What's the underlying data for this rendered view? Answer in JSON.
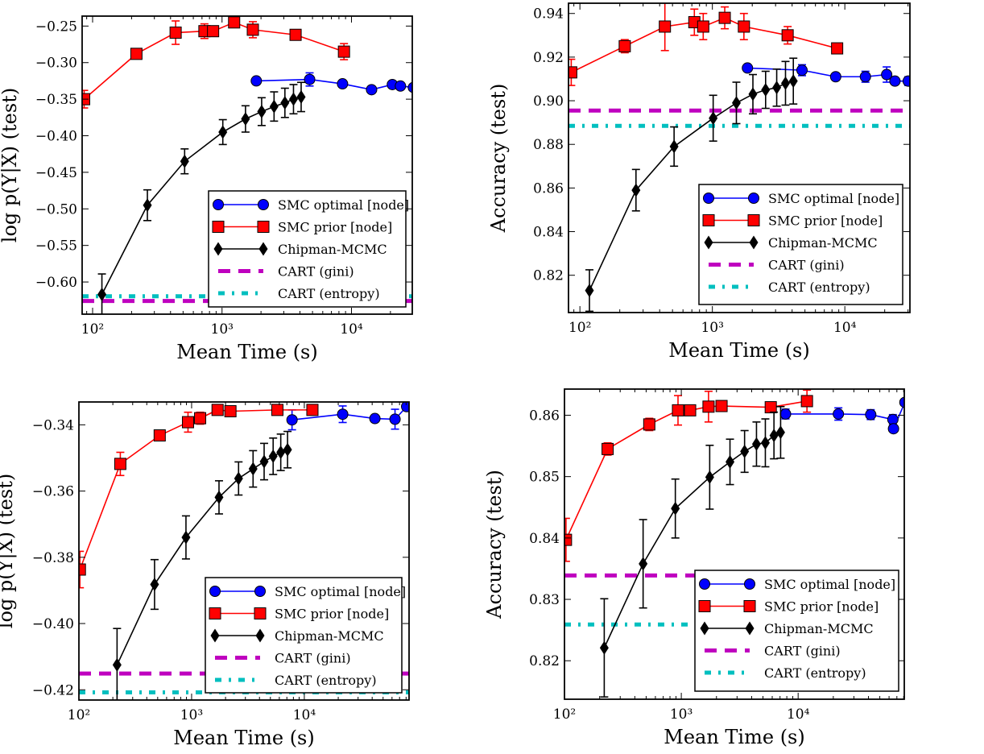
{
  "colors": {
    "smc_optimal": "#0000ff",
    "smc_prior": "#ff0000",
    "chipman": "#000000",
    "cart_gini": "#bf00bf",
    "cart_entropy": "#00bfbf"
  },
  "legend_labels": [
    "SMC optimal [node]",
    "SMC prior [node]",
    "Chipman-MCMC",
    "CART (gini)",
    "CART (entropy)"
  ],
  "chart_data": [
    {
      "type": "line",
      "xscale": "log",
      "xlabel": "Mean Time (s)",
      "ylabel": "log p(Y|X) (test)",
      "xlim": [
        83,
        29500
      ],
      "ylim": [
        -0.644,
        -0.2364
      ],
      "legend": "lower right",
      "grid": false,
      "xticks": [
        100,
        1000,
        10000
      ],
      "xtick_labels": [
        "10²",
        "10³",
        "10⁴"
      ],
      "yticks": [
        -0.6,
        -0.55,
        -0.5,
        -0.45,
        -0.4,
        -0.35,
        -0.3,
        -0.25
      ],
      "ytick_labels": [
        "−0.60",
        "−0.55",
        "−0.50",
        "−0.45",
        "−0.40",
        "−0.35",
        "−0.30",
        "−0.25"
      ],
      "series": [
        {
          "name": "SMC optimal [node]",
          "x": [
            1840,
            4750,
            8530,
            14300,
            20700,
            23900,
            30100
          ],
          "y": [
            -0.325,
            -0.323,
            -0.329,
            -0.337,
            -0.33,
            -0.332,
            -0.334
          ],
          "yerr": [
            0.003,
            0.009,
            0.004,
            0.004,
            0.004,
            0.003,
            0.003
          ]
        },
        {
          "name": "SMC prior [node]",
          "x": [
            86,
            218,
            438,
            731,
            853,
            1240,
            1730,
            3700,
            8750
          ],
          "y": [
            -0.35,
            -0.288,
            -0.259,
            -0.257,
            -0.257,
            -0.245,
            -0.255,
            -0.262,
            -0.285
          ],
          "yerr": [
            0.012,
            0.005,
            0.016,
            0.01,
            0.005,
            0.004,
            0.011,
            0.004,
            0.011
          ]
        },
        {
          "name": "Chipman-MCMC",
          "x": [
            118,
            265,
            514,
            1014,
            1518,
            2023,
            2523,
            3060,
            3565,
            4085
          ],
          "y": [
            -0.617,
            -0.495,
            -0.435,
            -0.395,
            -0.377,
            -0.367,
            -0.36,
            -0.355,
            -0.35,
            -0.347
          ],
          "yerr": [
            0.028,
            0.021,
            0.017,
            0.017,
            0.018,
            0.019,
            0.02,
            0.02,
            0.02,
            0.02
          ]
        },
        {
          "name": "CART (gini)",
          "constant": -0.626
        },
        {
          "name": "CART (entropy)",
          "constant": -0.6195
        }
      ]
    },
    {
      "type": "line",
      "xscale": "log",
      "xlabel": "Mean Time (s)",
      "ylabel": "Accuracy (test)",
      "xlim": [
        82,
        31000
      ],
      "ylim": [
        0.8029,
        0.9447
      ],
      "legend": "lower right",
      "grid": false,
      "xticks": [
        100,
        1000,
        10000
      ],
      "xtick_labels": [
        "10²",
        "10³",
        "10⁴"
      ],
      "yticks": [
        0.82,
        0.84,
        0.86,
        0.88,
        0.9,
        0.92,
        0.94
      ],
      "ytick_labels": [
        "0.82",
        "0.84",
        "0.86",
        "0.88",
        "0.90",
        "0.92",
        "0.94"
      ],
      "series": [
        {
          "name": "SMC optimal [node]",
          "x": [
            1840,
            4750,
            8530,
            14300,
            20700,
            23900,
            30100
          ],
          "y": [
            0.915,
            0.914,
            0.911,
            0.911,
            0.912,
            0.909,
            0.909
          ],
          "yerr": [
            0.001,
            0.0025,
            0.001,
            0.0025,
            0.0035,
            0.001,
            0.002
          ]
        },
        {
          "name": "SMC prior [node]",
          "x": [
            86,
            218,
            438,
            731,
            853,
            1240,
            1730,
            3700,
            8750
          ],
          "y": [
            0.913,
            0.925,
            0.934,
            0.936,
            0.934,
            0.938,
            0.934,
            0.93,
            0.924
          ],
          "yerr": [
            0.006,
            0.003,
            0.011,
            0.006,
            0.006,
            0.005,
            0.006,
            0.004,
            0.002
          ]
        },
        {
          "name": "Chipman-MCMC",
          "x": [
            118,
            265,
            514,
            1014,
            1518,
            2023,
            2523,
            3060,
            3565,
            4085
          ],
          "y": [
            0.813,
            0.859,
            0.879,
            0.892,
            0.899,
            0.903,
            0.905,
            0.906,
            0.908,
            0.909
          ],
          "yerr": [
            0.0095,
            0.0095,
            0.009,
            0.0105,
            0.0095,
            0.009,
            0.0085,
            0.0085,
            0.01,
            0.0105
          ]
        },
        {
          "name": "CART (gini)",
          "constant": 0.8955
        },
        {
          "name": "CART (entropy)",
          "constant": 0.8885
        }
      ]
    },
    {
      "type": "line",
      "xscale": "log",
      "xlabel": "Mean Time (s)",
      "ylabel": "log p(Y|X) (test)",
      "xlim": [
        100,
        85000
      ],
      "ylim": [
        -0.4231,
        -0.3331
      ],
      "legend": "lower right",
      "grid": false,
      "xticks": [
        100,
        1000,
        10000
      ],
      "xtick_labels": [
        "10²",
        "10³",
        "10⁴"
      ],
      "yticks": [
        -0.42,
        -0.4,
        -0.38,
        -0.36,
        -0.34
      ],
      "ytick_labels": [
        "−0.42",
        "−0.40",
        "−0.38",
        "−0.36",
        "−0.34"
      ],
      "series": [
        {
          "name": "SMC optimal [node]",
          "x": [
            7780,
            21900,
            42300,
            63800,
            80900
          ],
          "y": [
            -0.3385,
            -0.3368,
            -0.3381,
            -0.3383,
            -0.3345
          ],
          "yerr": [
            0.003,
            0.0025,
            0.001,
            0.003,
            0.001
          ]
        },
        {
          "name": "SMC prior [node]",
          "x": [
            102,
            233,
            521,
            929,
            1190,
            1700,
            2210,
            5770,
            11800
          ],
          "y": [
            -0.3837,
            -0.3518,
            -0.3432,
            -0.3392,
            -0.338,
            -0.3355,
            -0.3359,
            -0.3355,
            -0.3355
          ],
          "yerr": [
            0.0055,
            0.0035,
            0.0015,
            0.003,
            0.0018,
            0.001,
            0.0012,
            0.0005,
            0.0005
          ]
        },
        {
          "name": "Chipman-MCMC",
          "x": [
            218,
            469,
            891,
            1750,
            2610,
            3510,
            4400,
            5290,
            6180,
            7100
          ],
          "y": [
            -0.4125,
            -0.3882,
            -0.374,
            -0.3619,
            -0.3562,
            -0.3533,
            -0.3511,
            -0.3495,
            -0.3483,
            -0.3475
          ],
          "yerr": [
            0.011,
            0.0075,
            0.0065,
            0.005,
            0.005,
            0.0055,
            0.0055,
            0.0055,
            0.0055,
            0.0055
          ]
        },
        {
          "name": "CART (gini)",
          "constant": -0.4151
        },
        {
          "name": "CART (entropy)",
          "constant": -0.4208
        }
      ]
    },
    {
      "type": "line",
      "xscale": "log",
      "xlabel": "Mean Time (s)",
      "ylabel": "Accuracy (test)",
      "xlim": [
        100,
        81000
      ],
      "ylim": [
        0.81373,
        0.86426
      ],
      "legend": "lower right",
      "grid": false,
      "xticks": [
        100,
        1000,
        10000
      ],
      "xtick_labels": [
        "10²",
        "10³",
        "10⁴"
      ],
      "yticks": [
        0.82,
        0.83,
        0.84,
        0.85,
        0.86
      ],
      "ytick_labels": [
        "0.82",
        "0.83",
        "0.84",
        "0.85",
        "0.86"
      ],
      "series": [
        {
          "name": "SMC optimal [node]",
          "x": [
            7800,
            22100,
            41800,
            64700,
            65500,
            82000
          ],
          "y": [
            0.8602,
            0.8602,
            0.8601,
            0.8593,
            0.8578,
            0.8621
          ],
          "yerr": [
            0.0008,
            0.001,
            0.0008,
            0.0008,
            0.0003,
            0.0003
          ]
        },
        {
          "name": "SMC prior [node]",
          "x": [
            103,
            234,
            532,
            937,
            1190,
            1710,
            2210,
            5830,
            11900
          ],
          "y": [
            0.8397,
            0.8545,
            0.8585,
            0.8608,
            0.8608,
            0.8614,
            0.8615,
            0.8613,
            0.8623
          ],
          "yerr": [
            0.0035,
            0.001,
            0.001,
            0.0024,
            0.0008,
            0.0025,
            0.0007,
            0.0008,
            0.0018
          ]
        },
        {
          "name": "Chipman-MCMC",
          "x": [
            219,
            471,
            889,
            1750,
            2610,
            3480,
            4400,
            5240,
            6210,
            7080
          ],
          "y": [
            0.8221,
            0.8358,
            0.8448,
            0.8499,
            0.8524,
            0.8541,
            0.8553,
            0.8555,
            0.8567,
            0.8572
          ],
          "yerr": [
            0.008,
            0.0072,
            0.0048,
            0.0052,
            0.0037,
            0.0034,
            0.0036,
            0.0039,
            0.0038,
            0.0042
          ]
        },
        {
          "name": "CART (gini)",
          "constant": 0.8339
        },
        {
          "name": "CART (entropy)",
          "constant": 0.8259
        }
      ]
    }
  ]
}
